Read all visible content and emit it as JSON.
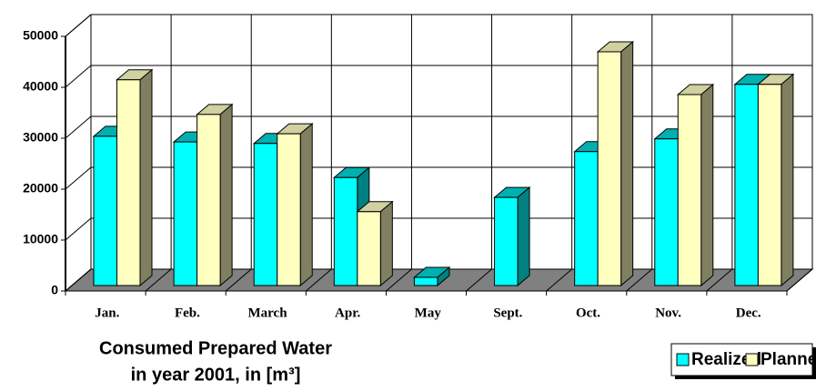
{
  "chart_data": {
    "type": "bar3d",
    "title": [
      "Consumed Prepared Water",
      "in year 2001, in [m³]"
    ],
    "categories": [
      "Jan.",
      "Feb.",
      "March",
      "Apr.",
      "May",
      "Sept.",
      "Oct.",
      "Nov.",
      "Dec."
    ],
    "series": [
      {
        "name": "Realized",
        "color": "#00ffff",
        "values": [
          29300,
          28200,
          27900,
          21200,
          1600,
          17300,
          26300,
          28800,
          39500
        ]
      },
      {
        "name": "Planned",
        "color": "#ffffc0",
        "values": [
          40400,
          33600,
          29800,
          14500,
          null,
          null,
          45900,
          37500,
          39500
        ]
      }
    ],
    "ylim": [
      0,
      50000
    ],
    "yticks": [
      0,
      10000,
      20000,
      30000,
      40000,
      50000
    ],
    "grid": true,
    "legend": "bottom-right"
  }
}
